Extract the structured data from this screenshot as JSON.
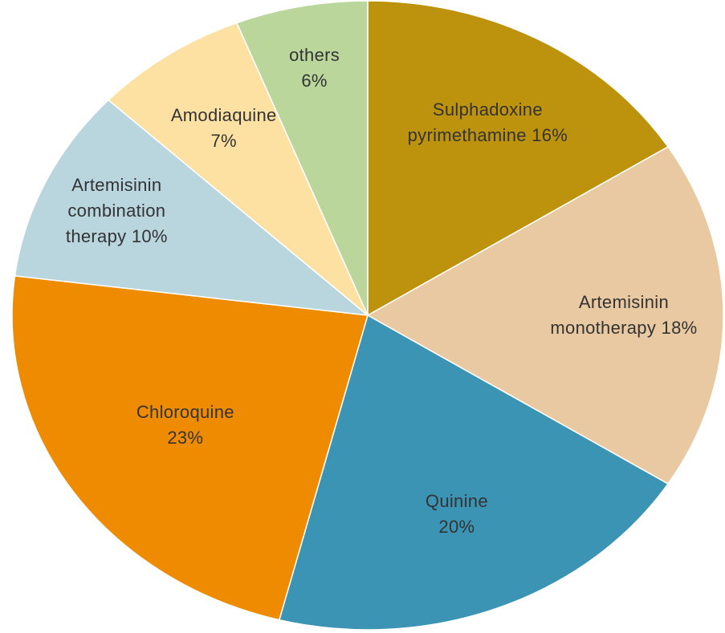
{
  "chart_data": {
    "type": "pie",
    "categories": [
      "Sulphadoxine pyrimethamine",
      "Artemisinin monotherapy",
      "Quinine",
      "Chloroquine",
      "Artemisinin combination therapy",
      "Amodiaquine",
      "others"
    ],
    "values": [
      16,
      18,
      20,
      23,
      10,
      7,
      6
    ],
    "value_labels": [
      "16%",
      "18%",
      "20%",
      "23%",
      "10%",
      "7%",
      "6%"
    ],
    "colors": [
      "#bd920c",
      "#e9c9a1",
      "#3b94b3",
      "#ef8b00",
      "#b9d5de",
      "#fde1a2",
      "#bad69b"
    ]
  }
}
